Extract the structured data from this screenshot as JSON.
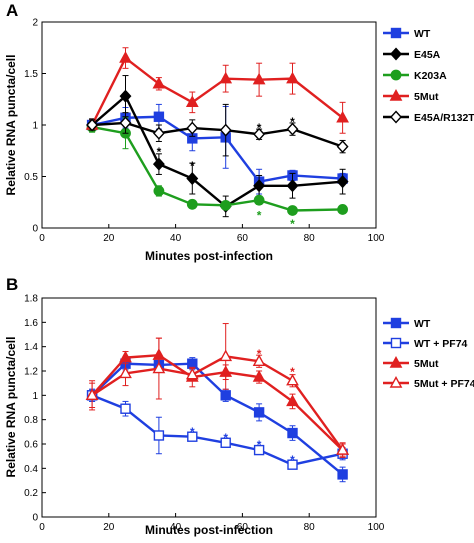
{
  "chart_data": [
    {
      "panel_label": "A",
      "type": "line",
      "xlabel": "Minutes post-infection",
      "ylabel": "Relative RNA puncta/cell",
      "xlim": [
        0,
        100
      ],
      "ylim": [
        0,
        2
      ],
      "xticks": [
        "0",
        "20",
        "40",
        "60",
        "80",
        "100"
      ],
      "yticks": [
        "0",
        "0.5",
        "1",
        "1.5",
        "2"
      ],
      "legend_placement": "right",
      "series": [
        {
          "name": "WT",
          "color": "#1f3fe0",
          "marker": "square-filled",
          "x": [
            15,
            25,
            35,
            45,
            55,
            65,
            75,
            90
          ],
          "y": [
            1.0,
            1.07,
            1.08,
            0.87,
            0.88,
            0.45,
            0.51,
            0.48
          ],
          "err": [
            0.05,
            0.1,
            0.12,
            0.12,
            0.3,
            0.12,
            0.05,
            0.05
          ]
        },
        {
          "name": "E45A",
          "color": "#000000",
          "marker": "diamond-filled",
          "x": [
            15,
            25,
            35,
            45,
            55,
            65,
            75,
            90
          ],
          "y": [
            1.0,
            1.28,
            0.62,
            0.48,
            0.21,
            0.41,
            0.41,
            0.45
          ],
          "err": [
            0.06,
            0.2,
            0.1,
            0.15,
            0.1,
            0.1,
            0.12,
            0.12
          ]
        },
        {
          "name": "K203A",
          "color": "#1e9e1e",
          "marker": "circle-filled",
          "x": [
            15,
            25,
            35,
            45,
            55,
            65,
            75,
            90
          ],
          "y": [
            0.98,
            0.92,
            0.36,
            0.23,
            0.22,
            0.27,
            0.17,
            0.18
          ],
          "err": [
            0.05,
            0.15,
            0.05,
            0.03,
            0.03,
            0.04,
            0.02,
            0.02
          ]
        },
        {
          "name": "5Mut",
          "color": "#e02020",
          "marker": "triangle-filled",
          "x": [
            15,
            25,
            35,
            45,
            55,
            65,
            75,
            90
          ],
          "y": [
            1.0,
            1.65,
            1.4,
            1.22,
            1.45,
            1.44,
            1.45,
            1.07
          ],
          "err": [
            0.05,
            0.1,
            0.06,
            0.1,
            0.13,
            0.16,
            0.15,
            0.15
          ]
        },
        {
          "name": "E45A/R132T",
          "color": "#000000",
          "marker": "diamond-open",
          "x": [
            15,
            25,
            35,
            45,
            55,
            65,
            75,
            90
          ],
          "y": [
            1.0,
            1.02,
            0.92,
            0.97,
            0.95,
            0.91,
            0.96,
            0.79
          ],
          "err": [
            0.05,
            0.1,
            0.08,
            0.08,
            0.25,
            0.05,
            0.06,
            0.06
          ]
        }
      ],
      "annotations": [
        {
          "text": "*",
          "x": 35,
          "y": 0.74,
          "color": "#000000"
        },
        {
          "text": "*",
          "x": 45,
          "y": 0.6,
          "color": "#000000"
        },
        {
          "text": "*",
          "x": 65,
          "y": 0.97,
          "color": "#000000"
        },
        {
          "text": "*",
          "x": 75,
          "y": 1.03,
          "color": "#000000"
        },
        {
          "text": "*",
          "x": 65,
          "y": 0.12,
          "color": "#1e9e1e"
        },
        {
          "text": "*",
          "x": 75,
          "y": 0.04,
          "color": "#1e9e1e"
        }
      ]
    },
    {
      "panel_label": "B",
      "type": "line",
      "xlabel": "Minutes post-infection",
      "ylabel": "Relative RNA puncta/cell",
      "xlim": [
        0,
        100
      ],
      "ylim": [
        0,
        1.8
      ],
      "xticks": [
        "0",
        "20",
        "40",
        "60",
        "80",
        "100"
      ],
      "yticks": [
        "0",
        "0.2",
        "0.4",
        "0.6",
        "0.8",
        "1",
        "1.2",
        "1.4",
        "1.6",
        "1.8"
      ],
      "legend_placement": "right",
      "series": [
        {
          "name": "WT",
          "color": "#1f3fe0",
          "marker": "square-filled",
          "x": [
            15,
            25,
            35,
            45,
            55,
            65,
            75,
            90
          ],
          "y": [
            1.0,
            1.26,
            1.25,
            1.26,
            1.0,
            0.86,
            0.69,
            0.35
          ],
          "err": [
            0.05,
            0.05,
            0.06,
            0.05,
            0.05,
            0.07,
            0.06,
            0.06
          ]
        },
        {
          "name": "WT + PF74",
          "color": "#1f3fe0",
          "marker": "square-open",
          "x": [
            15,
            25,
            35,
            45,
            55,
            65,
            75,
            90
          ],
          "y": [
            1.0,
            0.89,
            0.67,
            0.66,
            0.61,
            0.55,
            0.43,
            0.52
          ],
          "err": [
            0.05,
            0.06,
            0.15,
            0.03,
            0.03,
            0.03,
            0.03,
            0.05
          ]
        },
        {
          "name": "5Mut",
          "color": "#e02020",
          "marker": "triangle-filled",
          "x": [
            15,
            25,
            35,
            45,
            55,
            65,
            75,
            90
          ],
          "y": [
            1.0,
            1.31,
            1.33,
            1.15,
            1.19,
            1.15,
            0.95,
            0.55
          ],
          "err": [
            0.1,
            0.05,
            0.14,
            0.08,
            0.06,
            0.05,
            0.06,
            0.06
          ]
        },
        {
          "name": "5Mut + PF74",
          "color": "#e02020",
          "marker": "triangle-open",
          "x": [
            15,
            25,
            35,
            45,
            55,
            65,
            75,
            90
          ],
          "y": [
            1.0,
            1.18,
            1.22,
            1.17,
            1.32,
            1.28,
            1.12,
            0.55
          ],
          "err": [
            0.12,
            0.1,
            0.25,
            0.05,
            0.27,
            0.05,
            0.05,
            0.05
          ]
        }
      ],
      "annotations": [
        {
          "text": "*",
          "x": 45,
          "y": 0.7,
          "color": "#1f3fe0"
        },
        {
          "text": "*",
          "x": 55,
          "y": 0.65,
          "color": "#1f3fe0"
        },
        {
          "text": "*",
          "x": 65,
          "y": 0.59,
          "color": "#1f3fe0"
        },
        {
          "text": "*",
          "x": 75,
          "y": 0.47,
          "color": "#1f3fe0"
        },
        {
          "text": "*",
          "x": 65,
          "y": 1.34,
          "color": "#e02020"
        },
        {
          "text": "*",
          "x": 75,
          "y": 1.19,
          "color": "#e02020"
        }
      ]
    }
  ]
}
